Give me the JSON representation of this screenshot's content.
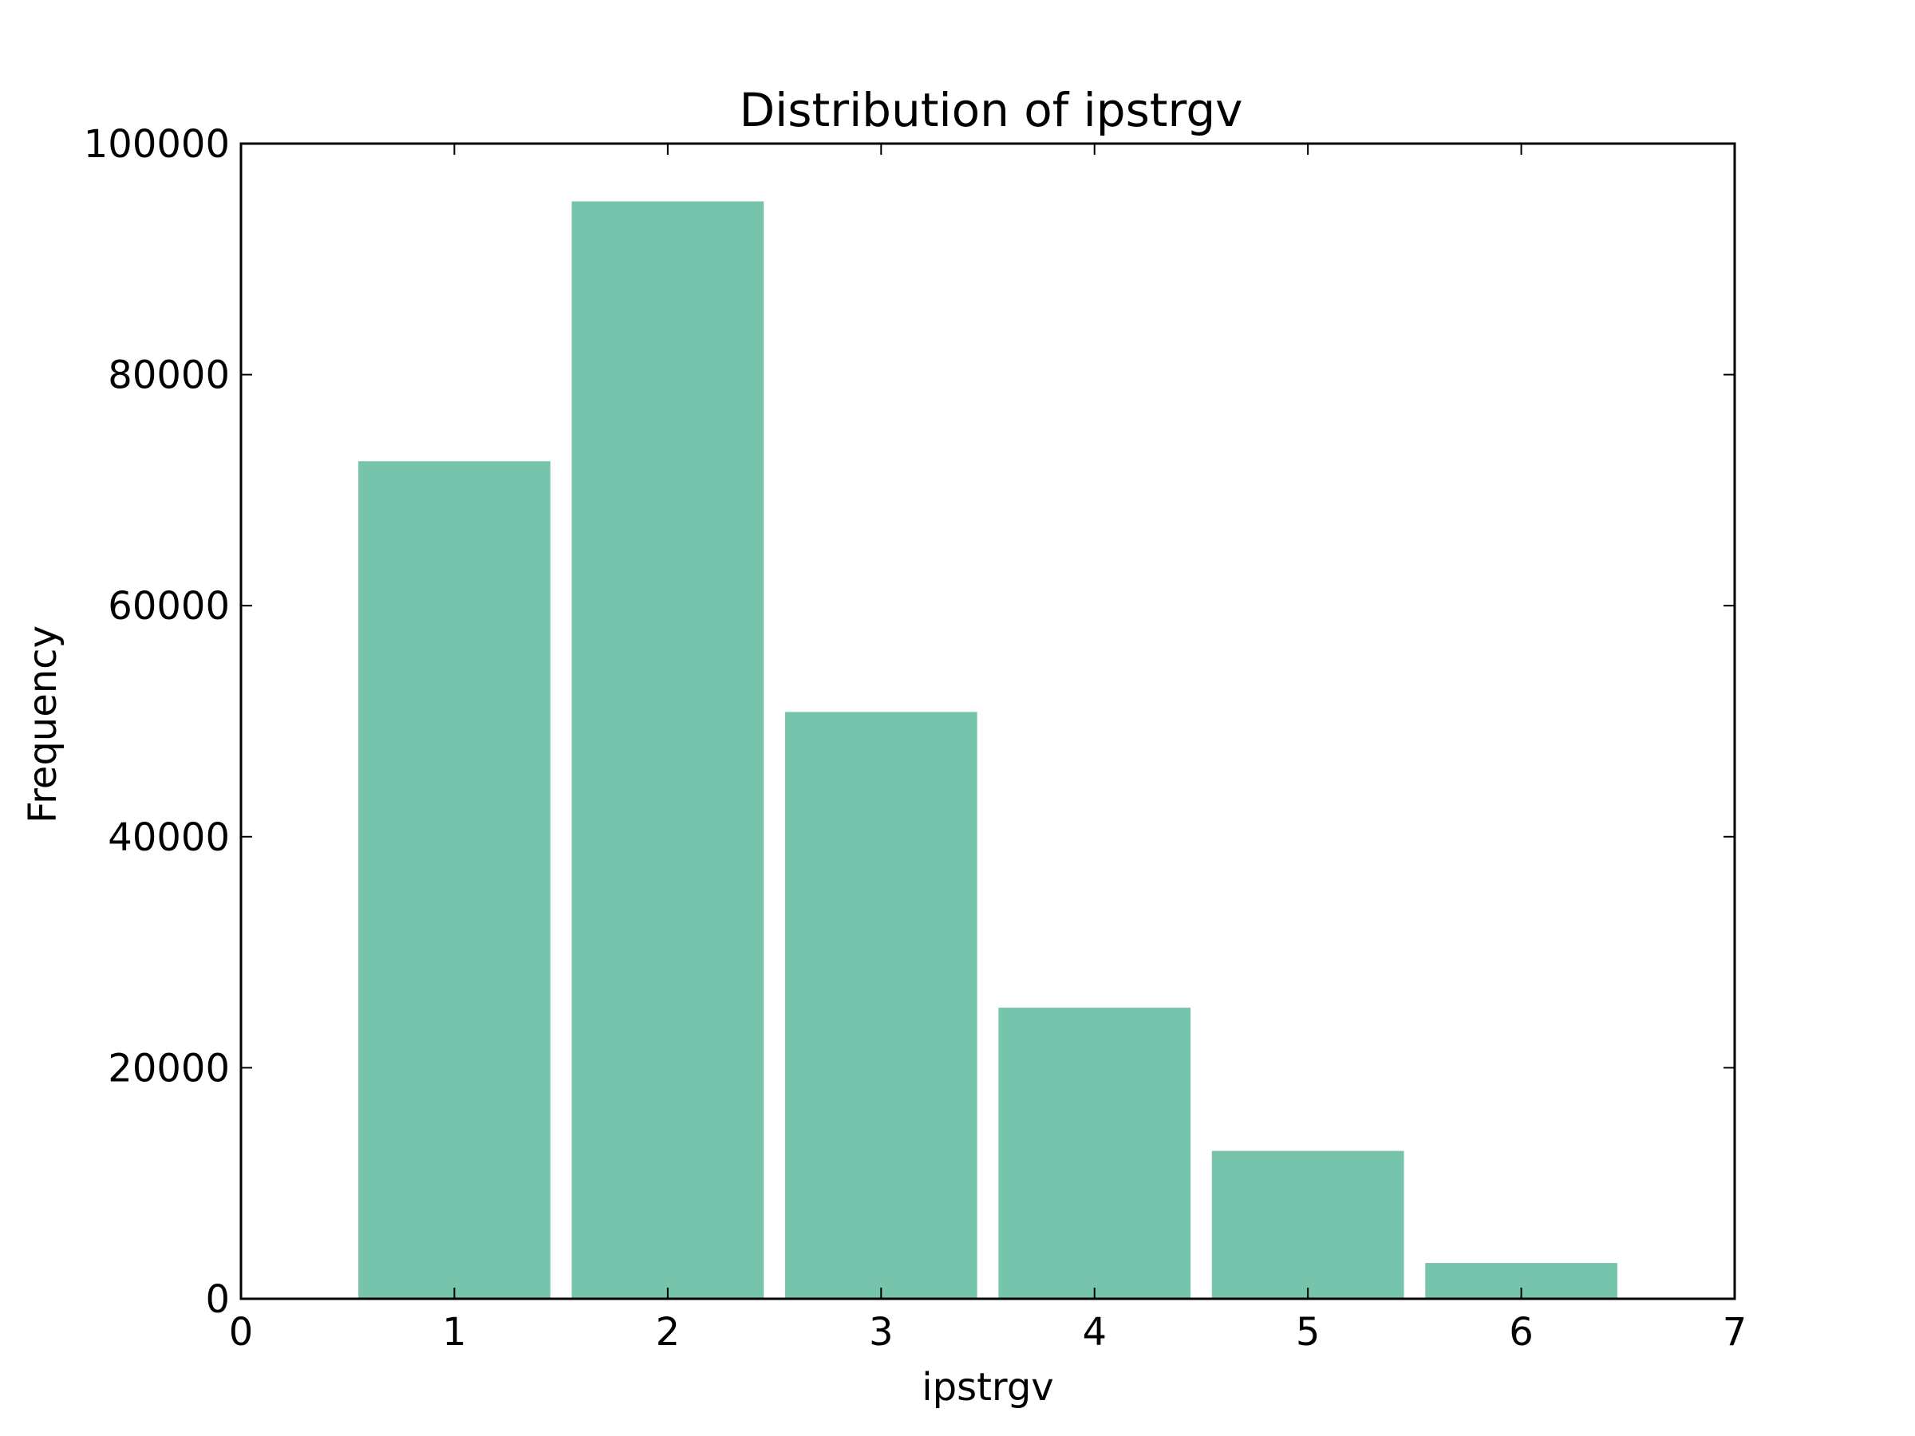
{
  "chart_data": {
    "type": "bar",
    "title": "Distribution of ipstrgv",
    "xlabel": "ipstrgv",
    "ylabel": "Frequency",
    "x": [
      1,
      2,
      3,
      4,
      5,
      6
    ],
    "values": [
      72500,
      95000,
      50800,
      25200,
      12800,
      3100
    ],
    "bar_width": 0.9,
    "xlim": [
      0,
      7
    ],
    "ylim": [
      0,
      100000
    ],
    "x_ticks": [
      0,
      1,
      2,
      3,
      4,
      5,
      6,
      7
    ],
    "y_ticks": [
      0,
      20000,
      40000,
      60000,
      80000,
      100000
    ],
    "x_tick_labels": [
      "0",
      "1",
      "2",
      "3",
      "4",
      "5",
      "6",
      "7"
    ],
    "y_tick_labels": [
      "0",
      "20000",
      "40000",
      "60000",
      "80000",
      "100000"
    ],
    "grid": false,
    "bar_color": "#77c4ad",
    "axis_color": "#000000"
  }
}
